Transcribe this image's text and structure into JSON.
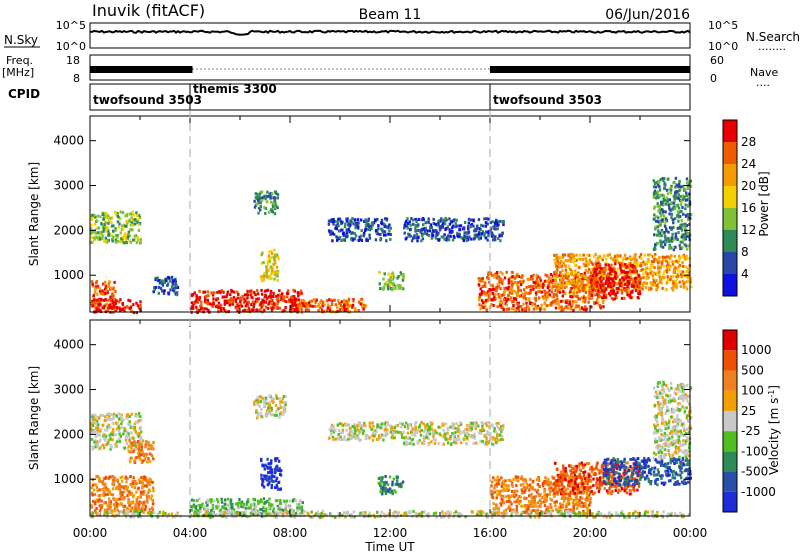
{
  "header": {
    "station": "Inuvik  (fitACF)",
    "beam": "Beam 11",
    "date": "06/Jun/2016"
  },
  "left_labels": {
    "nsky": "N.Sky",
    "freq_line1": "Freq.",
    "freq_line2": "[MHz]",
    "cpid": "CPID"
  },
  "right_labels": {
    "nsearch": "N.Search",
    "nsearch_dots": "........",
    "nave": "Nave",
    "nave_dots": "...."
  },
  "chart_data": [
    {
      "type": "line",
      "name": "noise-panel",
      "left_ticks": [
        "10^5",
        "10^0"
      ],
      "right_ticks": [
        "10^5",
        "10^0"
      ],
      "x": [
        "00:00",
        "24:00"
      ],
      "level": 0.65
    },
    {
      "type": "line",
      "name": "frequency-panel",
      "left_ticks": [
        "18",
        "8"
      ],
      "right_ticks": [
        "60",
        "0"
      ],
      "ylim_left": [
        8,
        18
      ],
      "ylim_right": [
        0,
        60
      ],
      "segments_hours": [
        [
          0,
          4.1
        ],
        [
          16.0,
          24.0
        ]
      ],
      "freq_level": 0.45
    },
    {
      "type": "table",
      "name": "cpid-panel",
      "segments": [
        {
          "label": "twofsound 3503",
          "start_h": 0.0
        },
        {
          "label": "themis 3300",
          "start_h": 4.0
        },
        {
          "label": "twofsound 3503",
          "start_h": 16.0
        }
      ]
    },
    {
      "type": "heatmap",
      "name": "power-panel",
      "ylabel": "Slant Range [km]",
      "yticks": [
        "1000",
        "2000",
        "3000",
        "4000"
      ],
      "ylim": [
        180,
        4550
      ],
      "xlim_hours": [
        0,
        24
      ],
      "colorbar": {
        "label": "Power [dB]",
        "ticks": [
          "4",
          "8",
          "12",
          "16",
          "20",
          "24",
          "28"
        ],
        "colors": [
          "#1010e0",
          "#2848a8",
          "#2e8b57",
          "#7fc236",
          "#f5d000",
          "#f59a00",
          "#f05a00",
          "#e80000"
        ]
      },
      "patches": [
        {
          "h0": 0.0,
          "h1": 2.0,
          "r0": 1750,
          "r1": 2450,
          "c": 3
        },
        {
          "h0": 0.0,
          "h1": 1.0,
          "r0": 300,
          "r1": 900,
          "c": 6
        },
        {
          "h0": 0.0,
          "h1": 2.0,
          "r0": 200,
          "r1": 500,
          "c": 7
        },
        {
          "h0": 2.5,
          "h1": 3.5,
          "r0": 600,
          "r1": 1000,
          "c": 1
        },
        {
          "h0": 4.0,
          "h1": 8.5,
          "r0": 200,
          "r1": 700,
          "c": 7
        },
        {
          "h0": 6.5,
          "h1": 7.5,
          "r0": 2400,
          "r1": 2900,
          "c": 2
        },
        {
          "h0": 6.8,
          "h1": 7.5,
          "r0": 900,
          "r1": 1600,
          "c": 4
        },
        {
          "h0": 8.0,
          "h1": 11.0,
          "r0": 200,
          "r1": 500,
          "c": 6
        },
        {
          "h0": 9.5,
          "h1": 12.0,
          "r0": 1800,
          "r1": 2300,
          "c": 1
        },
        {
          "h0": 11.5,
          "h1": 12.5,
          "r0": 700,
          "r1": 1100,
          "c": 3
        },
        {
          "h0": 12.5,
          "h1": 16.5,
          "r0": 1800,
          "r1": 2300,
          "c": 1
        },
        {
          "h0": 15.5,
          "h1": 20.5,
          "r0": 250,
          "r1": 1100,
          "c": 6
        },
        {
          "h0": 18.5,
          "h1": 24.0,
          "r0": 700,
          "r1": 1500,
          "c": 5
        },
        {
          "h0": 20.0,
          "h1": 22.0,
          "r0": 500,
          "r1": 1300,
          "c": 7
        },
        {
          "h0": 22.5,
          "h1": 24.0,
          "r0": 1600,
          "r1": 3200,
          "c": 2
        }
      ]
    },
    {
      "type": "heatmap",
      "name": "velocity-panel",
      "ylabel": "Slant Range [km]",
      "yticks": [
        "1000",
        "2000",
        "3000",
        "4000"
      ],
      "ylim": [
        180,
        4550
      ],
      "xlim_hours": [
        0,
        24
      ],
      "xticks": [
        "00:00",
        "04:00",
        "08:00",
        "12:00",
        "16:00",
        "20:00",
        "00:00"
      ],
      "xlabel": "Time UT",
      "colorbar": {
        "label": "Velocity [m s^-1]",
        "ticks": [
          "1000",
          "500",
          "100",
          "25",
          "-25",
          "-100",
          "-500",
          "-1000"
        ],
        "colors": [
          "#1c2cd8",
          "#2850a8",
          "#2e8b57",
          "#50c020",
          "#c8c8c8",
          "#f0a000",
          "#f08020",
          "#f05000",
          "#e00000"
        ]
      },
      "patches": [
        {
          "h0": 0.0,
          "h1": 2.0,
          "r0": 1700,
          "r1": 2500,
          "c": 4
        },
        {
          "h0": 0.0,
          "h1": 2.5,
          "r0": 250,
          "r1": 1100,
          "c": 6
        },
        {
          "h0": 1.5,
          "h1": 2.5,
          "r0": 1400,
          "r1": 1900,
          "c": 6
        },
        {
          "h0": 4.0,
          "h1": 8.5,
          "r0": 200,
          "r1": 600,
          "c": 3
        },
        {
          "h0": 6.8,
          "h1": 7.6,
          "r0": 800,
          "r1": 1500,
          "c": 0
        },
        {
          "h0": 6.5,
          "h1": 7.8,
          "r0": 2400,
          "r1": 2900,
          "c": 4
        },
        {
          "h0": 9.5,
          "h1": 12.5,
          "r0": 1900,
          "r1": 2300,
          "c": 4
        },
        {
          "h0": 12.5,
          "h1": 16.5,
          "r0": 1800,
          "r1": 2300,
          "c": 4
        },
        {
          "h0": 11.5,
          "h1": 12.5,
          "r0": 700,
          "r1": 1100,
          "c": 2
        },
        {
          "h0": 16.0,
          "h1": 20.0,
          "r0": 250,
          "r1": 1100,
          "c": 6
        },
        {
          "h0": 18.5,
          "h1": 22.0,
          "r0": 700,
          "r1": 1400,
          "c": 7
        },
        {
          "h0": 20.5,
          "h1": 24.0,
          "r0": 900,
          "r1": 1500,
          "c": 1
        },
        {
          "h0": 22.5,
          "h1": 24.0,
          "r0": 1500,
          "r1": 3200,
          "c": 4
        },
        {
          "h0": 0.0,
          "h1": 24.0,
          "r0": 180,
          "r1": 320,
          "c": 4
        }
      ]
    }
  ]
}
